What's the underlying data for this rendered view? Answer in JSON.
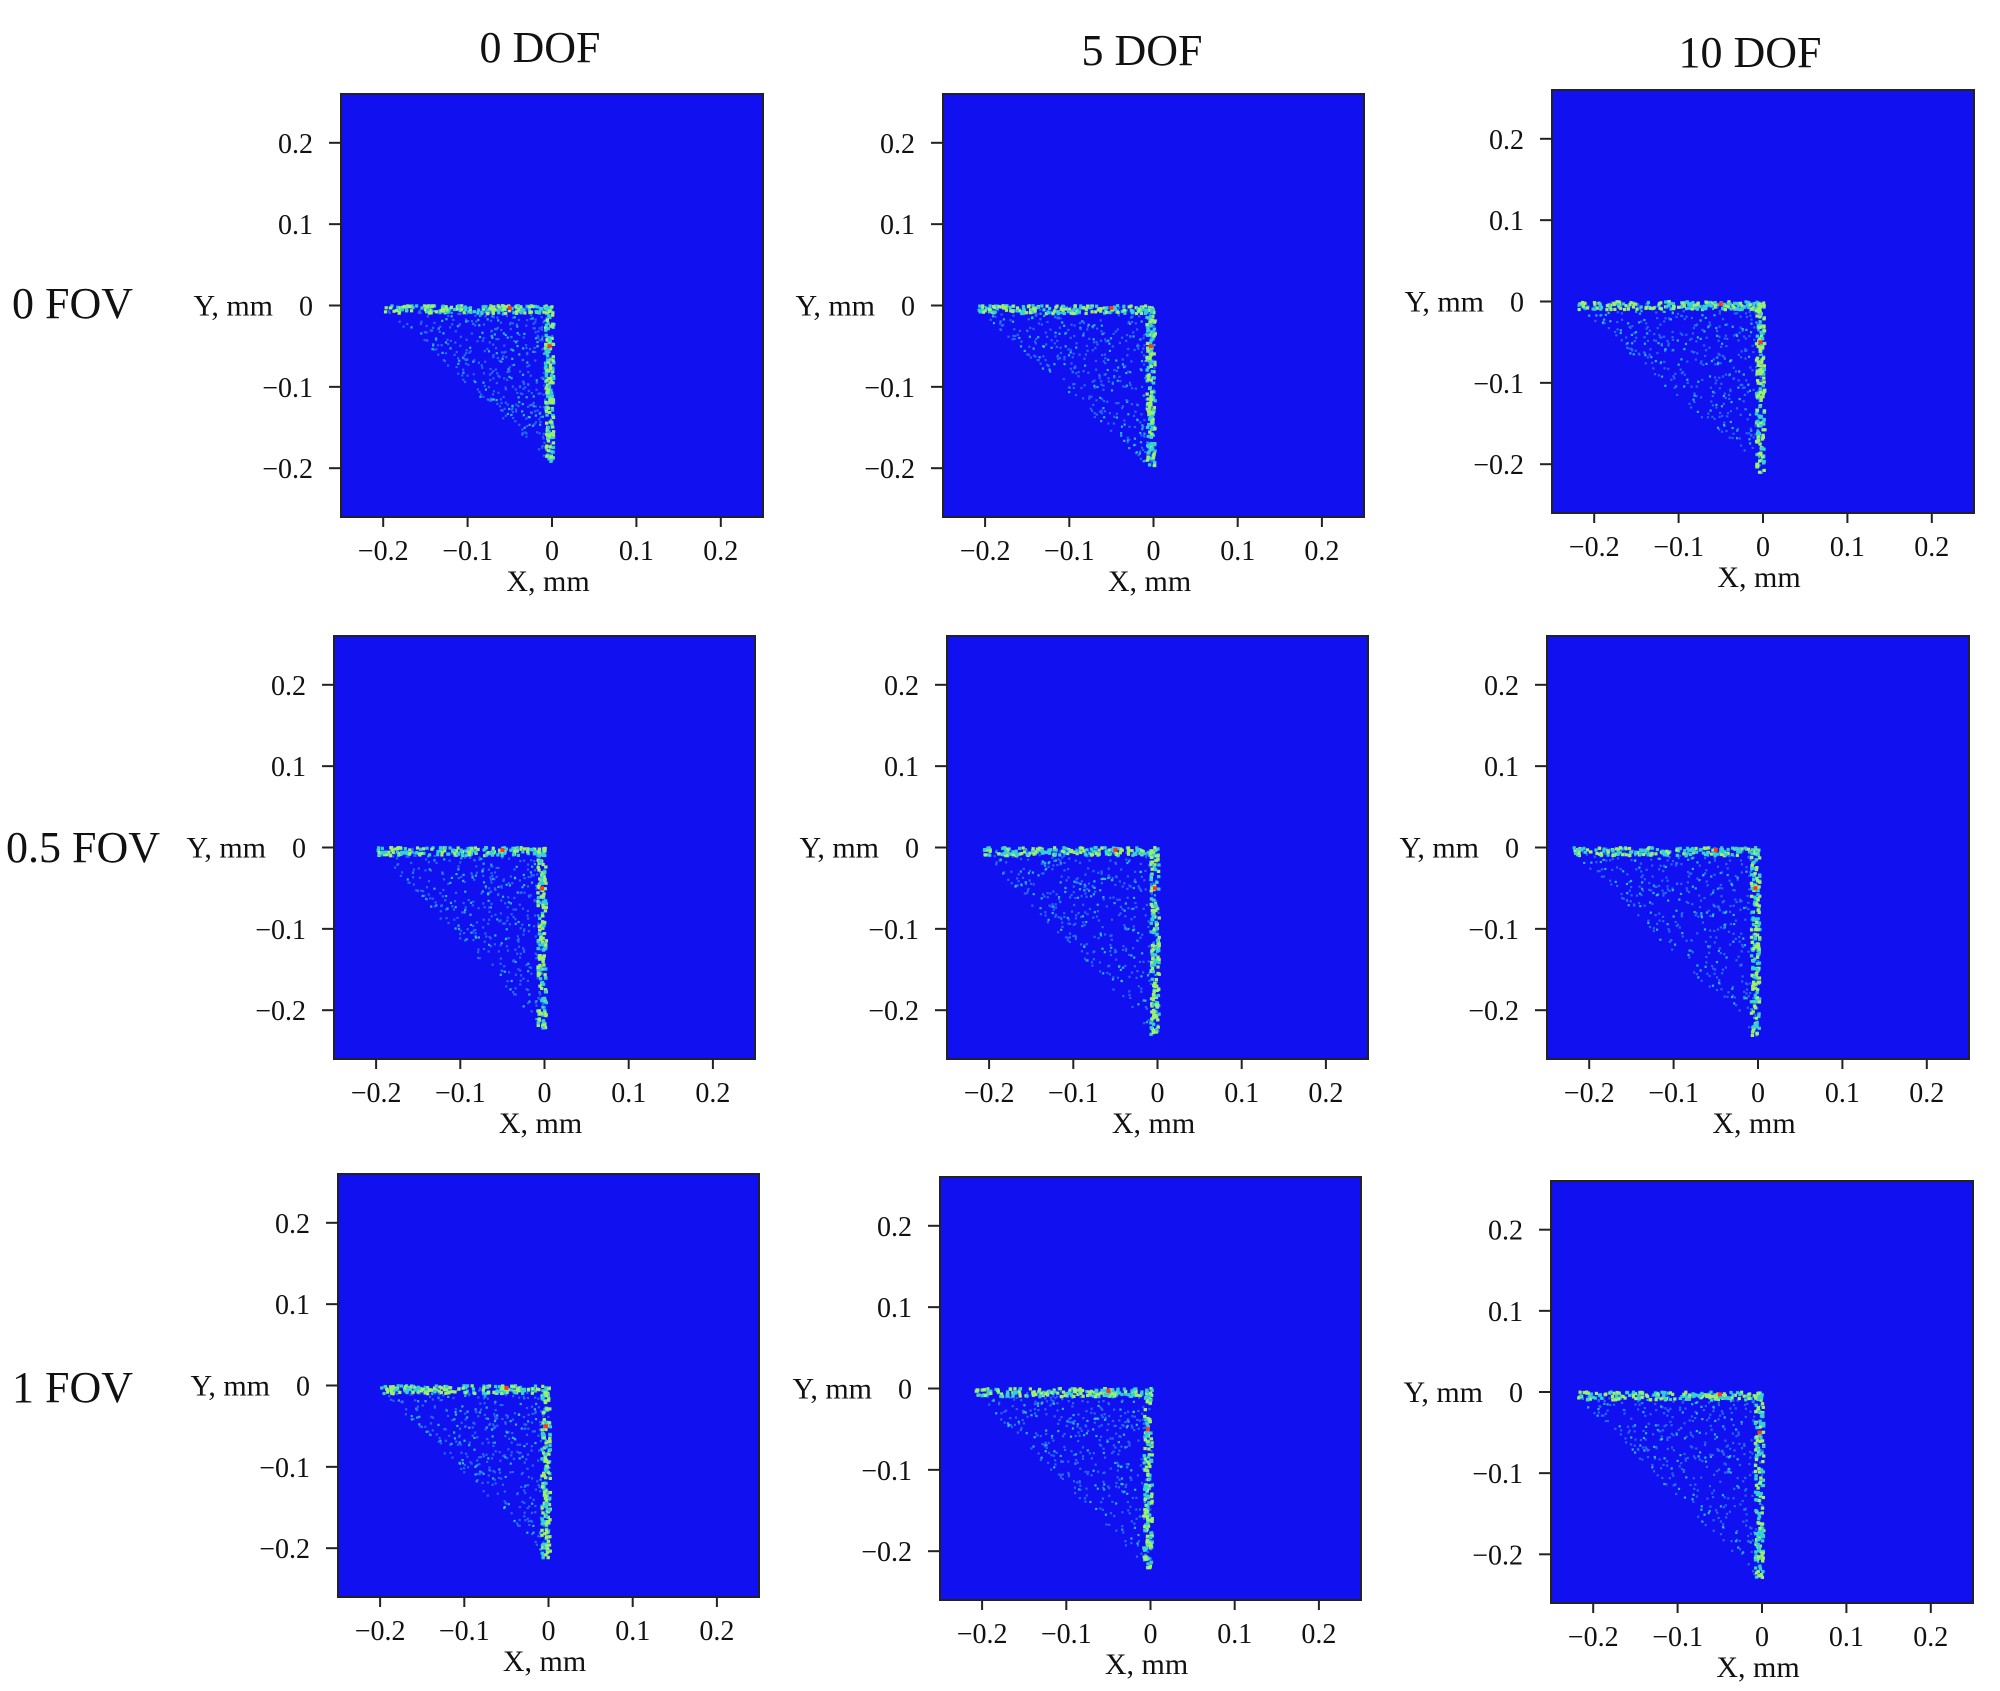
{
  "column_titles": [
    "0 DOF",
    "5 DOF",
    "10 DOF"
  ],
  "row_titles": [
    "0 FOV",
    "0.5 FOV",
    "1 FOV"
  ],
  "colors": {
    "background": "#1010f0",
    "low": "#2b74ff",
    "mid": "#33d0d8",
    "high": "#9cf06a",
    "peak": "#ff3a1a"
  },
  "chart_data": {
    "type": "heatmap",
    "layout": "3x3 grid of spot diagrams",
    "xlabel": "X, mm",
    "ylabel": "Y, mm",
    "xlim": [
      -0.25,
      0.25
    ],
    "ylim": [
      -0.26,
      0.26
    ],
    "xticks": [
      -0.2,
      -0.1,
      0,
      0.1,
      0.2
    ],
    "yticks": [
      0.2,
      0.1,
      0,
      -0.1,
      -0.2
    ],
    "xtick_labels": [
      "−0.2",
      "−0.1",
      "0",
      "0.1",
      "0.2"
    ],
    "ytick_labels": [
      "0.2",
      "0.1",
      "0",
      "−0.1",
      "−0.2"
    ],
    "grid": false,
    "panels": [
      {
        "row": "0 FOV",
        "col": "0 DOF",
        "x_min": -0.2,
        "y_min": -0.19
      },
      {
        "row": "0 FOV",
        "col": "5 DOF",
        "x_min": -0.21,
        "y_min": -0.2
      },
      {
        "row": "0 FOV",
        "col": "10 DOF",
        "x_min": -0.22,
        "y_min": -0.21
      },
      {
        "row": "0.5 FOV",
        "col": "0 DOF",
        "x_min": -0.2,
        "y_min": -0.22
      },
      {
        "row": "0.5 FOV",
        "col": "5 DOF",
        "x_min": -0.21,
        "y_min": -0.23
      },
      {
        "row": "0.5 FOV",
        "col": "10 DOF",
        "x_min": -0.22,
        "y_min": -0.23
      },
      {
        "row": "1 FOV",
        "col": "0 DOF",
        "x_min": -0.2,
        "y_min": -0.21
      },
      {
        "row": "1 FOV",
        "col": "5 DOF",
        "x_min": -0.21,
        "y_min": -0.22
      },
      {
        "row": "1 FOV",
        "col": "10 DOF",
        "x_min": -0.22,
        "y_min": -0.23
      }
    ]
  }
}
